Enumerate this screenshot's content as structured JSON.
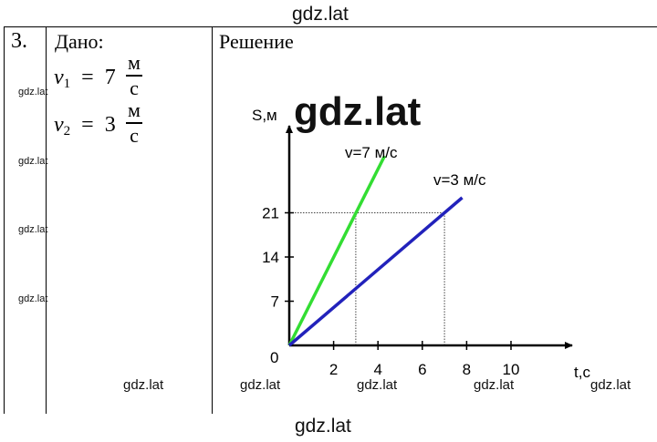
{
  "watermark": {
    "text": "gdz.lat",
    "big_text": "gdz.lat"
  },
  "task": {
    "number": "3.",
    "given_label": "Дано:",
    "solution_label": "Решение",
    "given": [
      {
        "symbol": "v",
        "sub": "1",
        "equals": "=",
        "value": "7",
        "unit_num": "м",
        "unit_den": "с"
      },
      {
        "symbol": "v",
        "sub": "2",
        "equals": "=",
        "value": "3",
        "unit_num": "м",
        "unit_den": "с"
      }
    ]
  },
  "chart_data": {
    "type": "line",
    "ylabel": "S,м",
    "xlabel": "t,с",
    "x_ticks": [
      "2",
      "4",
      "6",
      "8",
      "10"
    ],
    "x_tick_values": [
      2,
      4,
      6,
      8,
      10
    ],
    "y_ticks": [
      "7",
      "14",
      "21"
    ],
    "y_tick_values": [
      7,
      14,
      21
    ],
    "origin_label": "0",
    "xlim": [
      0,
      13
    ],
    "ylim": [
      0,
      28
    ],
    "series": [
      {
        "name": "v=7 м/с",
        "color": "#33dd33",
        "points": [
          [
            0,
            0
          ],
          [
            4.3,
            30
          ]
        ]
      },
      {
        "name": "v=3 м/с",
        "color": "#2222bb",
        "points": [
          [
            0,
            0
          ],
          [
            7.8,
            23.4
          ]
        ]
      }
    ],
    "guides": [
      {
        "x": 3,
        "y": 21
      },
      {
        "x": 7,
        "y": 21
      }
    ]
  }
}
